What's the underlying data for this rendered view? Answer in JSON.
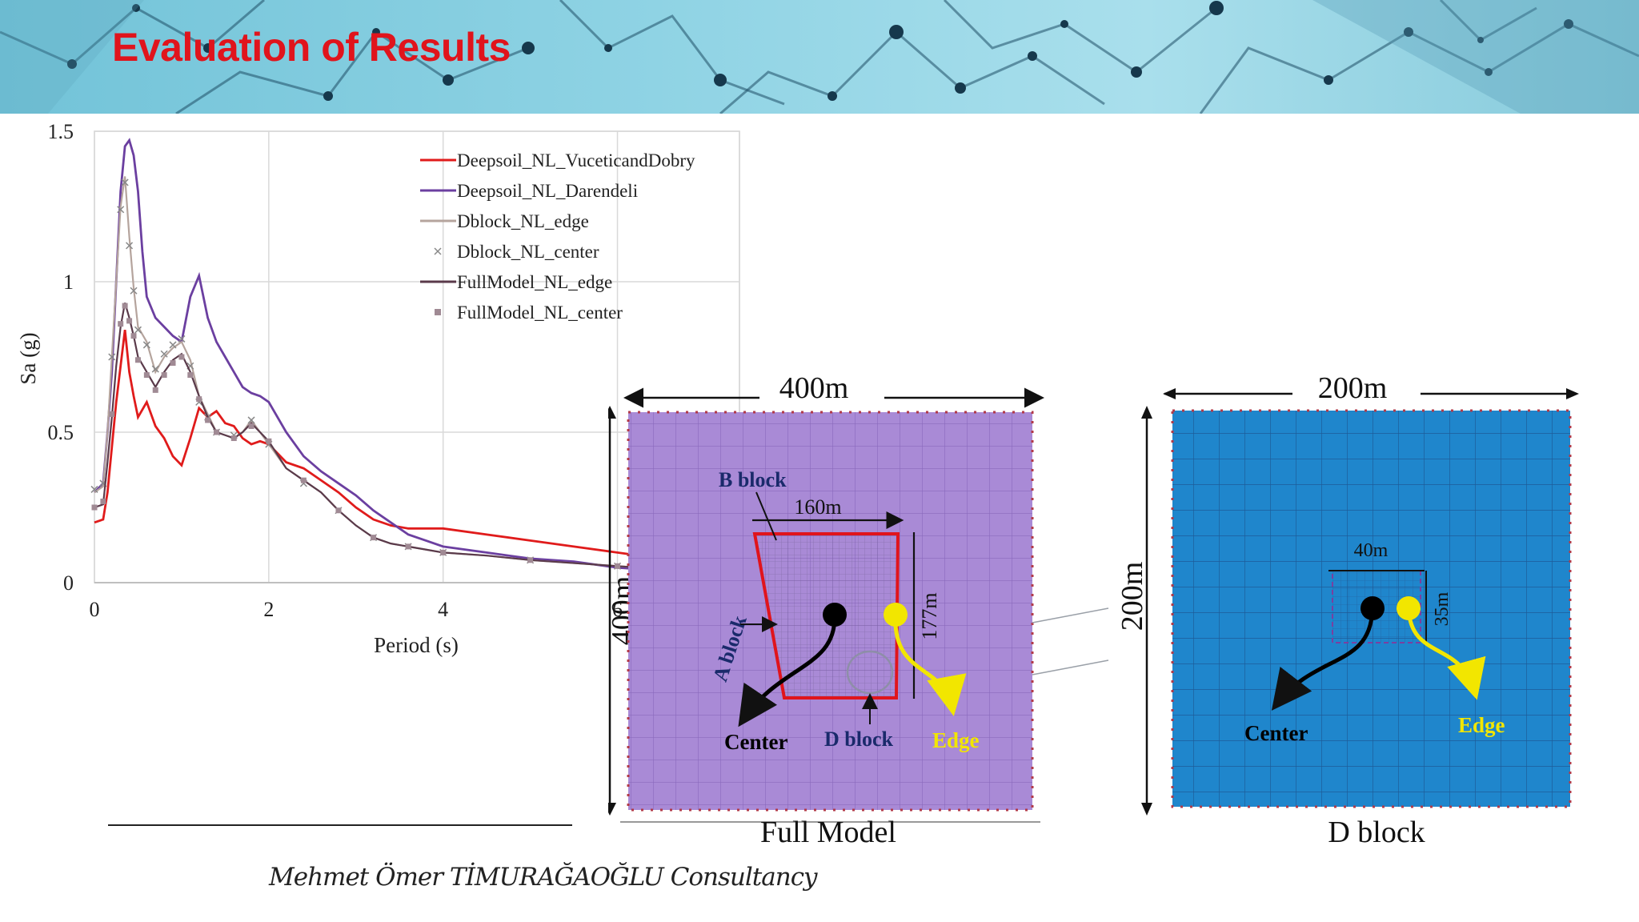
{
  "slide": {
    "title": "Evaluation of Results",
    "footer": "Mehmet Ömer TİMURAĞAOĞLU Consultancy"
  },
  "colors": {
    "title": "#e0141c",
    "banner": "#8fd3e4",
    "full_model_fill": "#a98ad6",
    "d_block_fill": "#1f86cc"
  },
  "chart_data": {
    "type": "line",
    "title": "",
    "xlabel": "Period (s)",
    "ylabel": "Sa (g)",
    "xlim": [
      0,
      7.4
    ],
    "ylim": [
      0,
      1.5
    ],
    "xticks": [
      0,
      2,
      4,
      6
    ],
    "yticks": [
      0,
      0.5,
      1,
      1.5
    ],
    "ytick_labels": [
      "0",
      "0.5",
      "1",
      "1.5"
    ],
    "grid": true,
    "legend_position": "top-right",
    "series": [
      {
        "name": "Deepsoil_NL_VuceticandDobry",
        "color": "#e01b1b",
        "style": "line",
        "x": [
          0,
          0.1,
          0.15,
          0.2,
          0.25,
          0.3,
          0.35,
          0.4,
          0.45,
          0.5,
          0.6,
          0.7,
          0.8,
          0.9,
          1.0,
          1.1,
          1.2,
          1.3,
          1.4,
          1.5,
          1.6,
          1.7,
          1.8,
          1.9,
          2.0,
          2.2,
          2.4,
          2.6,
          2.8,
          3.0,
          3.2,
          3.4,
          3.6,
          3.8,
          4.0,
          4.5,
          5.0,
          5.5,
          6.0,
          6.5,
          7.0,
          7.4
        ],
        "y": [
          0.2,
          0.21,
          0.3,
          0.45,
          0.6,
          0.72,
          0.84,
          0.7,
          0.62,
          0.55,
          0.6,
          0.52,
          0.48,
          0.42,
          0.39,
          0.48,
          0.58,
          0.55,
          0.57,
          0.53,
          0.52,
          0.48,
          0.46,
          0.47,
          0.46,
          0.4,
          0.38,
          0.34,
          0.3,
          0.25,
          0.21,
          0.19,
          0.18,
          0.18,
          0.18,
          0.16,
          0.14,
          0.12,
          0.1,
          0.08,
          0.06,
          0.05
        ]
      },
      {
        "name": "Deepsoil_NL_Darendeli",
        "color": "#6b3fa0",
        "style": "line",
        "x": [
          0,
          0.1,
          0.15,
          0.2,
          0.25,
          0.3,
          0.35,
          0.4,
          0.45,
          0.5,
          0.55,
          0.6,
          0.7,
          0.8,
          0.9,
          1.0,
          1.1,
          1.2,
          1.3,
          1.4,
          1.5,
          1.6,
          1.7,
          1.8,
          1.9,
          2.0,
          2.2,
          2.4,
          2.6,
          2.8,
          3.0,
          3.2,
          3.4,
          3.6,
          3.8,
          4.0,
          4.5,
          5.0,
          5.5,
          6.0,
          6.5,
          7.0,
          7.4
        ],
        "y": [
          0.3,
          0.33,
          0.5,
          0.7,
          1.0,
          1.3,
          1.45,
          1.47,
          1.42,
          1.3,
          1.1,
          0.95,
          0.88,
          0.85,
          0.82,
          0.8,
          0.95,
          1.02,
          0.88,
          0.8,
          0.75,
          0.7,
          0.65,
          0.63,
          0.62,
          0.6,
          0.5,
          0.42,
          0.37,
          0.33,
          0.29,
          0.24,
          0.2,
          0.16,
          0.14,
          0.12,
          0.1,
          0.08,
          0.07,
          0.05,
          0.04,
          0.035,
          0.03
        ]
      },
      {
        "name": "Dblock_NL_edge",
        "color": "#b5a49d",
        "style": "line",
        "x": [
          0,
          0.1,
          0.15,
          0.2,
          0.25,
          0.3,
          0.35,
          0.4,
          0.45,
          0.5,
          0.6,
          0.7,
          0.8,
          0.9,
          1.0,
          1.1,
          1.2,
          1.3,
          1.4,
          1.5,
          1.6,
          1.7,
          1.8,
          1.9,
          2.0,
          2.2,
          2.4,
          2.6,
          2.8,
          3.0,
          3.2,
          3.4,
          3.6,
          3.8,
          4.0,
          4.5,
          5.0,
          5.5,
          6.0,
          6.5,
          7.0,
          7.4
        ],
        "y": [
          0.3,
          0.32,
          0.5,
          0.75,
          1.0,
          1.25,
          1.35,
          1.15,
          0.98,
          0.85,
          0.8,
          0.7,
          0.75,
          0.78,
          0.8,
          0.74,
          0.62,
          0.56,
          0.5,
          0.49,
          0.48,
          0.5,
          0.54,
          0.5,
          0.46,
          0.38,
          0.34,
          0.3,
          0.24,
          0.19,
          0.15,
          0.13,
          0.12,
          0.11,
          0.1,
          0.09,
          0.075,
          0.065,
          0.055,
          0.045,
          0.035,
          0.03
        ]
      },
      {
        "name": "Dblock_NL_center",
        "color": "#888888",
        "style": "x",
        "x": [
          0,
          0.1,
          0.2,
          0.3,
          0.35,
          0.4,
          0.45,
          0.5,
          0.6,
          0.7,
          0.8,
          0.9,
          1.0,
          1.1,
          1.2,
          1.3,
          1.4,
          1.6,
          1.8,
          2.0,
          2.4,
          2.8,
          3.2,
          3.6,
          4.0,
          5.0,
          6.0,
          7.0
        ],
        "y": [
          0.31,
          0.33,
          0.75,
          1.24,
          1.33,
          1.12,
          0.97,
          0.84,
          0.79,
          0.71,
          0.76,
          0.79,
          0.81,
          0.72,
          0.6,
          0.55,
          0.5,
          0.49,
          0.54,
          0.46,
          0.33,
          0.24,
          0.15,
          0.12,
          0.1,
          0.075,
          0.055,
          0.035
        ]
      },
      {
        "name": "FullModel_NL_edge",
        "color": "#5a3a4a",
        "style": "line",
        "x": [
          0,
          0.1,
          0.15,
          0.2,
          0.25,
          0.3,
          0.35,
          0.4,
          0.45,
          0.5,
          0.6,
          0.7,
          0.8,
          0.9,
          1.0,
          1.1,
          1.2,
          1.3,
          1.4,
          1.5,
          1.6,
          1.7,
          1.8,
          1.9,
          2.0,
          2.2,
          2.4,
          2.6,
          2.8,
          3.0,
          3.2,
          3.4,
          3.6,
          3.8,
          4.0,
          4.5,
          5.0,
          5.5,
          6.0,
          6.5,
          7.0,
          7.4
        ],
        "y": [
          0.25,
          0.26,
          0.4,
          0.55,
          0.72,
          0.85,
          0.93,
          0.88,
          0.82,
          0.75,
          0.7,
          0.65,
          0.7,
          0.74,
          0.76,
          0.7,
          0.62,
          0.55,
          0.5,
          0.49,
          0.48,
          0.5,
          0.53,
          0.5,
          0.47,
          0.38,
          0.34,
          0.3,
          0.24,
          0.19,
          0.15,
          0.13,
          0.12,
          0.11,
          0.1,
          0.09,
          0.075,
          0.065,
          0.055,
          0.045,
          0.035,
          0.03
        ]
      },
      {
        "name": "FullModel_NL_center",
        "color": "#a08a94",
        "style": "square",
        "x": [
          0,
          0.1,
          0.2,
          0.3,
          0.35,
          0.4,
          0.45,
          0.5,
          0.6,
          0.7,
          0.8,
          0.9,
          1.0,
          1.1,
          1.2,
          1.3,
          1.4,
          1.6,
          1.8,
          2.0,
          2.4,
          2.8,
          3.2,
          3.6,
          4.0,
          5.0,
          6.0,
          7.0
        ],
        "y": [
          0.25,
          0.27,
          0.56,
          0.86,
          0.92,
          0.87,
          0.82,
          0.74,
          0.69,
          0.64,
          0.69,
          0.73,
          0.75,
          0.69,
          0.61,
          0.54,
          0.5,
          0.48,
          0.52,
          0.47,
          0.34,
          0.24,
          0.15,
          0.12,
          0.1,
          0.075,
          0.055,
          0.035
        ]
      }
    ]
  },
  "full_model": {
    "caption": "Full Model",
    "width_label": "400m",
    "height_label": "400m",
    "inner_width_label": "160m",
    "inner_height_label": "177m",
    "b_block": "B block",
    "a_block": "A block",
    "d_block": "D block",
    "center": "Center",
    "edge": "Edge"
  },
  "d_block_model": {
    "caption": "D block",
    "width_label": "200m",
    "height_label": "200m",
    "inner_width_label": "40m",
    "inner_height_label": "35m",
    "center": "Center",
    "edge": "Edge"
  }
}
